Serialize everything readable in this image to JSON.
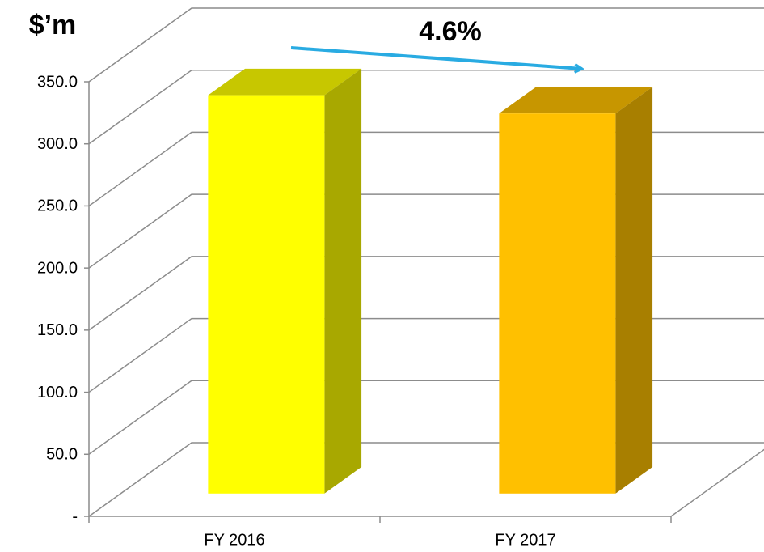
{
  "chart_data": {
    "type": "bar3d",
    "ylabel": "$’m",
    "annotation": "4.6%",
    "categories": [
      "FY 2016",
      "FY 2017"
    ],
    "values": [
      320.8,
      306.1
    ],
    "colors": [
      "#ffff00",
      "#ffc000"
    ],
    "ylim": [
      0,
      350
    ],
    "yticks": [
      {
        "value": 0,
        "label": "-"
      },
      {
        "value": 50,
        "label": "50.0"
      },
      {
        "value": 100,
        "label": "100.0"
      },
      {
        "value": 150,
        "label": "150.0"
      },
      {
        "value": 200,
        "label": "200.0"
      },
      {
        "value": 250,
        "label": "250.0"
      },
      {
        "value": 300,
        "label": "300.0"
      },
      {
        "value": 350,
        "label": "350.0"
      }
    ],
    "grid": true
  }
}
